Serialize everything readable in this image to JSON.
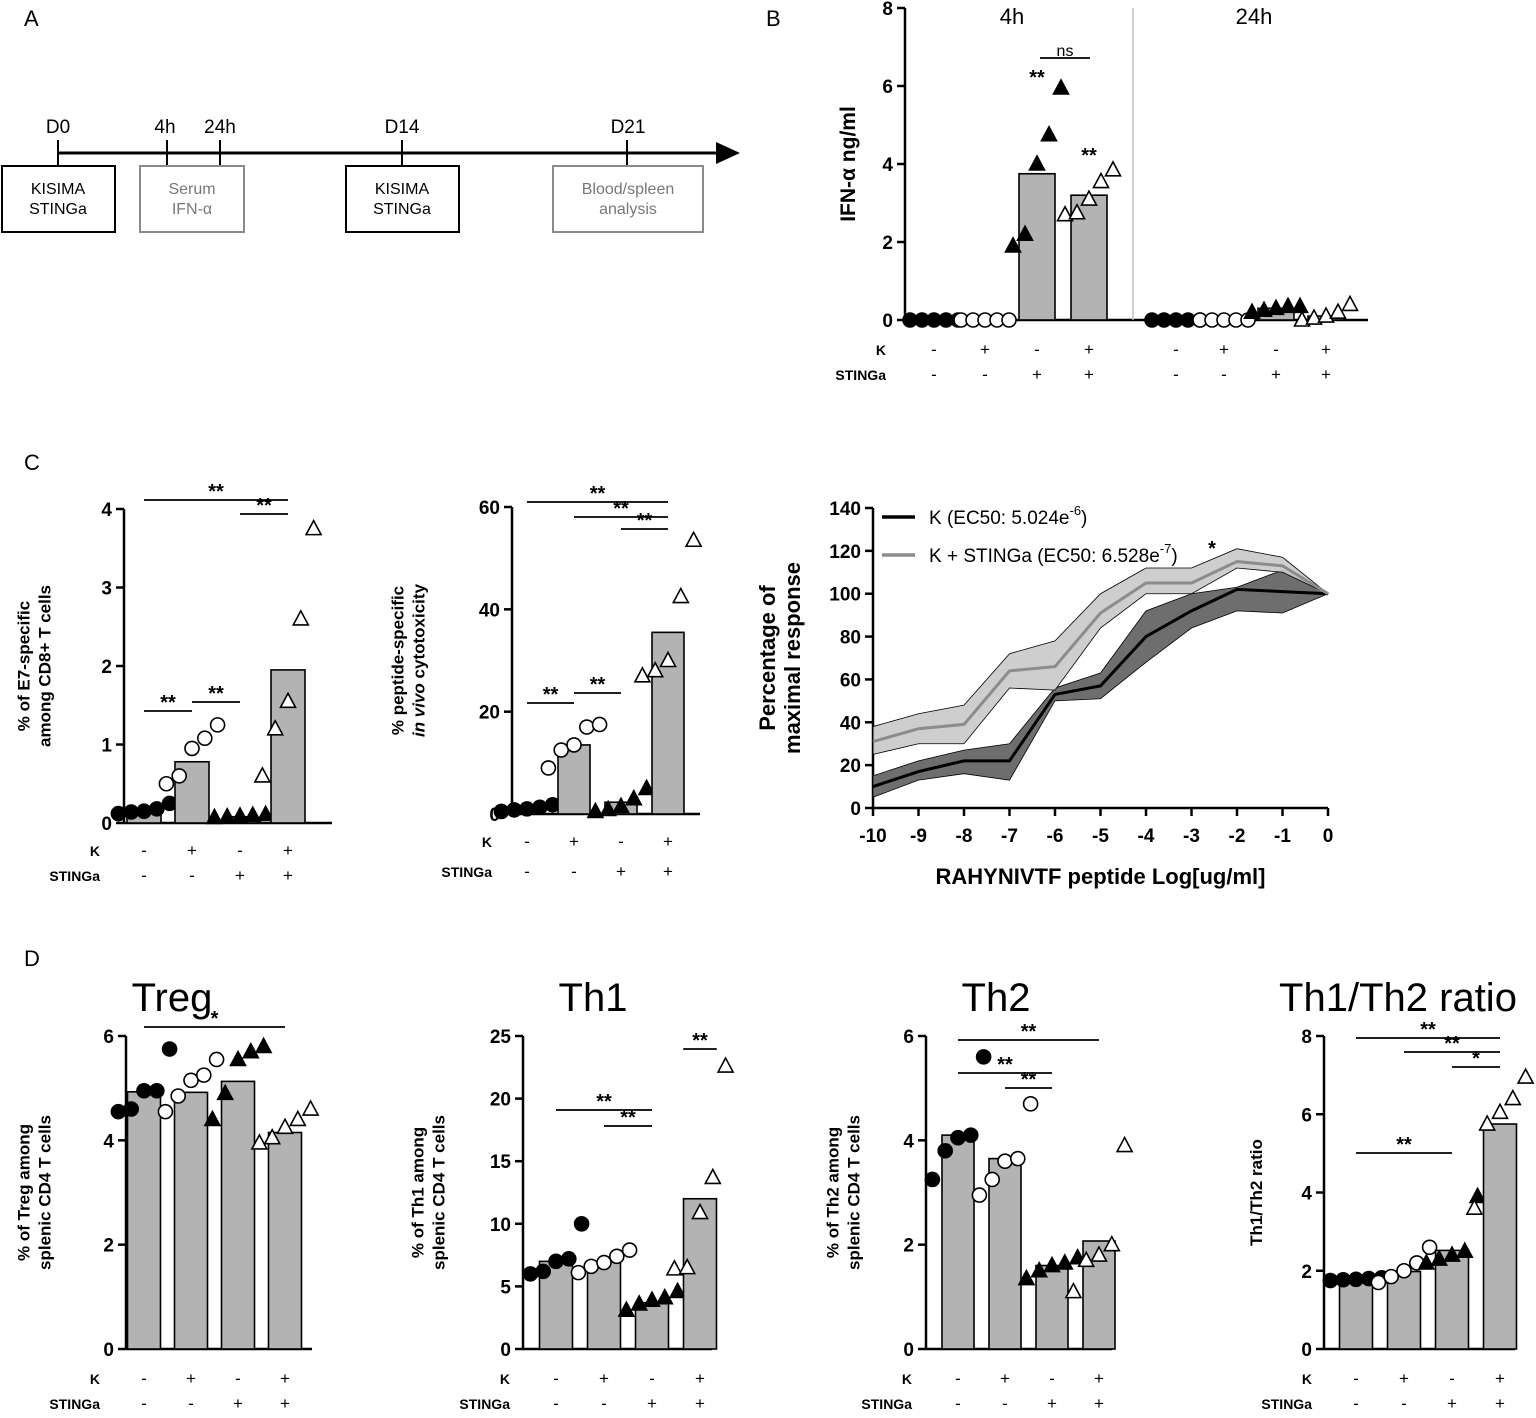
{
  "panel_labels": [
    "A",
    "B",
    "C",
    "D"
  ],
  "timeline": {
    "days": [
      "D0",
      "4h",
      "24h",
      "D14",
      "D21"
    ],
    "boxes": [
      {
        "lines": [
          "KISIMA",
          "STINGa"
        ],
        "style": "dark"
      },
      {
        "lines": [
          "Serum",
          "IFN-α"
        ],
        "style": "grey"
      },
      {
        "lines": [
          "KISIMA",
          "STINGa"
        ],
        "style": "dark"
      },
      {
        "lines": [
          "Blood/spleen",
          "analysis"
        ],
        "style": "grey"
      }
    ]
  },
  "colors": {
    "bar": "#b3b3b3",
    "gray_line": "#8c8c8c",
    "gray_band": "#c9c9c9",
    "dark_band": "#6e6e6e",
    "divider": "#c0c0c0"
  },
  "group_rows": {
    "k_label": "K",
    "sting_label": "STINGa",
    "k": [
      "-",
      "+",
      "-",
      "+"
    ],
    "sting": [
      "-",
      "-",
      "+",
      "+"
    ]
  },
  "chart_data": [
    {
      "id": "B",
      "type": "bar",
      "ylabel": "IFN-α ng/ml",
      "ylim": [
        0,
        8
      ],
      "yticks": [
        "0",
        "2",
        "4",
        "6",
        "8"
      ],
      "time_labels": [
        "4h",
        "24h"
      ],
      "markers": [
        "filled-circle",
        "open-circle",
        "filled-triangle",
        "open-triangle"
      ],
      "groups": [
        {
          "time": "4h",
          "means": [
            0,
            0,
            3.75,
            3.2
          ],
          "points": [
            [
              0,
              0,
              0,
              0,
              0
            ],
            [
              0,
              0,
              0,
              0,
              0
            ],
            [
              1.9,
              2.2,
              4.0,
              4.75,
              5.95
            ],
            [
              2.7,
              2.75,
              3.1,
              3.55,
              3.85
            ]
          ]
        },
        {
          "time": "24h",
          "means": [
            0,
            0,
            0.3,
            0.1
          ],
          "points": [
            [
              0,
              0,
              0,
              0,
              0
            ],
            [
              0,
              0,
              0,
              0,
              0
            ],
            [
              0.2,
              0.25,
              0.3,
              0.35,
              0.35
            ],
            [
              0,
              0.05,
              0.1,
              0.2,
              0.4
            ]
          ]
        }
      ],
      "annotations": [
        {
          "text": "**",
          "group": 2
        },
        {
          "text": "**",
          "group": 3
        },
        {
          "text": "ns",
          "from": 2,
          "to": 3
        }
      ]
    },
    {
      "id": "C1",
      "type": "bar",
      "ylabel_lines": [
        "% of E7-specific",
        "among CD8+ T cells"
      ],
      "ylim": [
        0,
        4
      ],
      "yticks": [
        "0",
        "1",
        "2",
        "3",
        "4"
      ],
      "markers": [
        "filled-circle",
        "open-circle",
        "filled-triangle",
        "open-triangle"
      ],
      "means": [
        0.15,
        0.78,
        0.08,
        1.95
      ],
      "points": [
        [
          0.12,
          0.14,
          0.15,
          0.18,
          0.25
        ],
        [
          0.5,
          0.6,
          0.95,
          1.08,
          1.25
        ],
        [
          0.07,
          0.08,
          0.09,
          0.1,
          0.11
        ],
        [
          0.6,
          1.2,
          1.55,
          2.6,
          3.75
        ]
      ],
      "annotations": [
        {
          "text": "**",
          "from": 0,
          "to": 3,
          "level": 0
        },
        {
          "text": "**",
          "from": 2,
          "to": 3,
          "level": 1
        },
        {
          "text": "**",
          "from": 0,
          "to": 1,
          "level": 2
        },
        {
          "text": "**",
          "from": 1,
          "to": 2,
          "level": 2
        }
      ]
    },
    {
      "id": "C2",
      "type": "bar",
      "ylabel_lines": [
        "% peptide-specific",
        "in vivo cytotoxicity"
      ],
      "ylabel_italic": "in vivo",
      "ylim": [
        0,
        60
      ],
      "yticks": [
        "0",
        "20",
        "40",
        "60"
      ],
      "markers": [
        "filled-circle",
        "open-circle",
        "filled-triangle",
        "open-triangle"
      ],
      "means": [
        1,
        13.5,
        2.3,
        35.5
      ],
      "points": [
        [
          0.5,
          0.8,
          1,
          1.3,
          1.8
        ],
        [
          9,
          12.5,
          13.5,
          17,
          17.5
        ],
        [
          0.5,
          0.9,
          1.5,
          3,
          5
        ],
        [
          27,
          28,
          30,
          42.5,
          53.5
        ]
      ],
      "annotations": [
        {
          "text": "**",
          "from": 0,
          "to": 3,
          "level": 0
        },
        {
          "text": "**",
          "from": 1,
          "to": 3,
          "level": 1
        },
        {
          "text": "**",
          "from": 2,
          "to": 3,
          "level": 2
        },
        {
          "text": "**",
          "from": 0,
          "to": 1,
          "level": 3
        },
        {
          "text": "**",
          "from": 1,
          "to": 2,
          "level": 3
        }
      ]
    },
    {
      "id": "C3",
      "type": "line",
      "ylabel_lines": [
        "Percentage of",
        "maximal response"
      ],
      "xlabel": "RAHYNIVTF peptide Log[ug/ml]",
      "xlim": [
        -10,
        0
      ],
      "ylim": [
        0,
        140
      ],
      "xticks": [
        "-10",
        "-9",
        "-8",
        "-7",
        "-6",
        "-5",
        "-4",
        "-3",
        "-2",
        "-1",
        "0"
      ],
      "yticks": [
        "0",
        "20",
        "40",
        "60",
        "80",
        "100",
        "120",
        "140"
      ],
      "x": [
        -10,
        -9,
        -8,
        -7,
        -6,
        -5,
        -4,
        -3,
        -2,
        -1,
        0
      ],
      "series": [
        {
          "name": "K (EC50: 5.024e",
          "sup": "-6",
          "suffix": ")",
          "color": "#000000",
          "values": [
            10,
            17,
            22,
            22,
            53,
            57,
            80,
            92,
            102,
            101,
            100
          ],
          "lower": [
            5,
            13,
            16,
            13,
            50,
            51,
            68,
            84,
            92,
            91,
            100
          ],
          "upper": [
            15,
            22,
            27,
            30,
            56,
            63,
            92,
            100,
            103,
            111,
            100
          ]
        },
        {
          "name": "K + STINGa (EC50: 6.528e",
          "sup": "-7",
          "suffix": ")",
          "color": "#8c8c8c",
          "values": [
            31,
            37,
            39,
            64,
            66,
            91,
            105,
            105,
            115,
            113,
            100
          ],
          "lower": [
            25,
            30,
            30,
            56,
            55,
            84,
            100,
            100,
            112,
            110,
            100
          ],
          "upper": [
            38,
            44,
            48,
            72,
            78,
            100,
            112,
            112,
            121,
            117,
            100
          ]
        }
      ],
      "annotation": "*"
    },
    {
      "id": "D1",
      "type": "bar",
      "title": "Treg",
      "ylabel_lines": [
        "% of Treg among",
        "splenic CD4 T cells"
      ],
      "ylim": [
        0,
        6
      ],
      "yticks": [
        "0",
        "2",
        "4",
        "6"
      ],
      "markers": [
        "filled-circle",
        "open-circle",
        "filled-triangle",
        "open-triangle"
      ],
      "means": [
        4.93,
        4.92,
        5.13,
        4.15
      ],
      "points": [
        [
          4.55,
          4.6,
          4.95,
          4.95,
          5.75
        ],
        [
          4.55,
          4.85,
          5.15,
          5.25,
          5.55
        ],
        [
          4.4,
          4.9,
          5.55,
          5.7,
          5.8
        ],
        [
          3.95,
          4.05,
          4.25,
          4.4,
          4.6
        ]
      ],
      "annotations": [
        {
          "text": "*",
          "from": 0,
          "to": 3,
          "level": 0
        }
      ]
    },
    {
      "id": "D2",
      "type": "bar",
      "title": "Th1",
      "ylabel_lines": [
        "% of Th1 among",
        "splenic CD4 T cells"
      ],
      "ylim": [
        0,
        25
      ],
      "yticks": [
        "0",
        "5",
        "10",
        "15",
        "20",
        "25"
      ],
      "markers": [
        "filled-circle",
        "open-circle",
        "filled-triangle",
        "open-triangle"
      ],
      "means": [
        7,
        7,
        3.7,
        12
      ],
      "points": [
        [
          6,
          6.2,
          7,
          7.2,
          10
        ],
        [
          6.1,
          6.6,
          6.9,
          7.4,
          7.9
        ],
        [
          3.1,
          3.6,
          3.9,
          4.1,
          4.6
        ],
        [
          6.4,
          6.5,
          10.9,
          13.7,
          22.6
        ]
      ],
      "annotations": [
        {
          "text": "**",
          "from": 3,
          "to": 3,
          "level": 0
        },
        {
          "text": "**",
          "from": 0,
          "to": 2,
          "level": 1
        },
        {
          "text": "**",
          "from": 1,
          "to": 2,
          "level": 2
        }
      ]
    },
    {
      "id": "D3",
      "type": "bar",
      "title": "Th2",
      "ylabel_lines": [
        "% of Th2 among",
        "splenic CD4 T cells"
      ],
      "ylim": [
        0,
        6
      ],
      "yticks": [
        "0",
        "2",
        "4",
        "6"
      ],
      "markers": [
        "filled-circle",
        "open-circle",
        "filled-triangle",
        "open-triangle"
      ],
      "means": [
        4.1,
        3.65,
        1.6,
        2.07
      ],
      "points": [
        [
          3.25,
          3.8,
          4.05,
          4.1,
          5.6
        ],
        [
          2.95,
          3.25,
          3.6,
          3.65,
          4.7
        ],
        [
          1.35,
          1.5,
          1.6,
          1.65,
          1.75
        ],
        [
          1.1,
          1.7,
          1.8,
          2.0,
          3.9
        ]
      ],
      "annotations": [
        {
          "text": "**",
          "from": 0,
          "to": 3,
          "level": 0
        },
        {
          "text": "**",
          "from": 0,
          "to": 2,
          "level": 1
        },
        {
          "text": "**",
          "from": 1,
          "to": 2,
          "level": 2
        }
      ]
    },
    {
      "id": "D4",
      "type": "bar",
      "title": "Th1/Th2 ratio",
      "ylabel_lines": [
        "Th1/Th2 ratio"
      ],
      "ylim": [
        0,
        8
      ],
      "yticks": [
        "0",
        "2",
        "4",
        "6",
        "8"
      ],
      "markers": [
        "filled-circle",
        "open-circle",
        "filled-triangle",
        "open-triangle"
      ],
      "means": [
        1.78,
        1.98,
        2.52,
        5.75
      ],
      "points": [
        [
          1.75,
          1.77,
          1.78,
          1.8,
          1.82
        ],
        [
          1.7,
          1.85,
          2.0,
          2.2,
          2.6
        ],
        [
          2.2,
          2.3,
          2.4,
          2.5,
          3.9
        ],
        [
          3.6,
          5.75,
          6.05,
          6.4,
          6.95
        ]
      ],
      "annotations": [
        {
          "text": "**",
          "from": 0,
          "to": 3,
          "level": 0
        },
        {
          "text": "**",
          "from": 1,
          "to": 3,
          "level": 1
        },
        {
          "text": "*",
          "from": 2,
          "to": 3,
          "level": 2
        },
        {
          "text": "**",
          "from": 0,
          "to": 2,
          "level": 3
        }
      ]
    }
  ]
}
